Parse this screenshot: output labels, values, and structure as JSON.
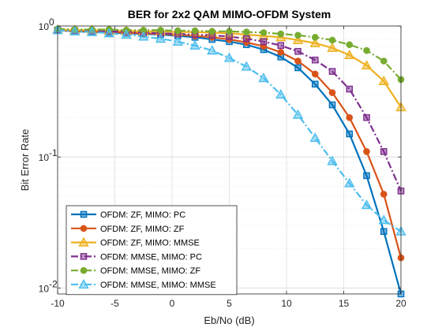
{
  "chart_data": {
    "type": "line",
    "title": "BER for 2x2 QAM MIMO-OFDM System",
    "xlabel": "Eb/No (dB)",
    "ylabel": "Bit Error Rate",
    "xlim": [
      -10,
      20
    ],
    "ylim": [
      0.009,
      1
    ],
    "yscale": "log",
    "grid": true,
    "legend_position": "bottom-left",
    "x_ticks": [
      "-10",
      "-5",
      "0",
      "5",
      "10",
      "15",
      "20"
    ],
    "x_tick_values": [
      -10,
      -5,
      0,
      5,
      10,
      15,
      20
    ],
    "y_ticks": [
      {
        "base": "10",
        "exp": "-2",
        "value": 0.01
      },
      {
        "base": "10",
        "exp": "-1",
        "value": 0.1
      },
      {
        "base": "10",
        "exp": "0",
        "value": 1
      }
    ],
    "x": [
      -10,
      -8.5,
      -7,
      -5.5,
      -4,
      -2.5,
      -1,
      0.5,
      2,
      3.5,
      5,
      6.5,
      8,
      9.5,
      11,
      12.5,
      14,
      15.5,
      17,
      18.5,
      20
    ],
    "series": [
      {
        "name": "OFDM: ZF, MIMO: PC",
        "color": "#0072BD",
        "line": "solid",
        "marker": "square",
        "values": [
          0.93,
          0.91,
          0.9,
          0.89,
          0.88,
          0.87,
          0.86,
          0.84,
          0.82,
          0.79,
          0.76,
          0.72,
          0.66,
          0.58,
          0.48,
          0.36,
          0.25,
          0.15,
          0.072,
          0.027,
          0.009
        ]
      },
      {
        "name": "OFDM: ZF, MIMO: ZF",
        "color": "#D95319",
        "line": "solid",
        "marker": "circle",
        "values": [
          0.93,
          0.92,
          0.91,
          0.9,
          0.89,
          0.88,
          0.87,
          0.86,
          0.84,
          0.82,
          0.79,
          0.75,
          0.7,
          0.63,
          0.54,
          0.43,
          0.31,
          0.2,
          0.11,
          0.052,
          0.017
        ]
      },
      {
        "name": "OFDM: ZF, MIMO: MMSE",
        "color": "#EDB120",
        "line": "solid",
        "marker": "triangle",
        "values": [
          0.94,
          0.93,
          0.93,
          0.92,
          0.92,
          0.91,
          0.91,
          0.9,
          0.9,
          0.89,
          0.88,
          0.86,
          0.84,
          0.82,
          0.78,
          0.74,
          0.68,
          0.6,
          0.5,
          0.38,
          0.24
        ]
      },
      {
        "name": "OFDM: MMSE, MIMO: PC",
        "color": "#7E2F8E",
        "line": "dashdot",
        "marker": "square",
        "values": [
          0.93,
          0.92,
          0.91,
          0.91,
          0.9,
          0.89,
          0.88,
          0.87,
          0.86,
          0.85,
          0.83,
          0.8,
          0.76,
          0.71,
          0.64,
          0.55,
          0.45,
          0.33,
          0.2,
          0.11,
          0.055
        ]
      },
      {
        "name": "OFDM: MMSE, MIMO: ZF",
        "color": "#77AC30",
        "line": "dashdot",
        "marker": "circle",
        "values": [
          0.95,
          0.94,
          0.94,
          0.94,
          0.93,
          0.93,
          0.93,
          0.92,
          0.92,
          0.91,
          0.91,
          0.9,
          0.89,
          0.87,
          0.85,
          0.82,
          0.78,
          0.72,
          0.65,
          0.54,
          0.39
        ]
      },
      {
        "name": "OFDM: MMSE, MIMO: MMSE",
        "color": "#4DBEEE",
        "line": "dashdot",
        "marker": "triangle",
        "values": [
          0.93,
          0.91,
          0.9,
          0.88,
          0.86,
          0.83,
          0.8,
          0.76,
          0.71,
          0.65,
          0.57,
          0.49,
          0.4,
          0.3,
          0.21,
          0.14,
          0.093,
          0.063,
          0.043,
          0.033,
          0.027
        ]
      }
    ]
  }
}
